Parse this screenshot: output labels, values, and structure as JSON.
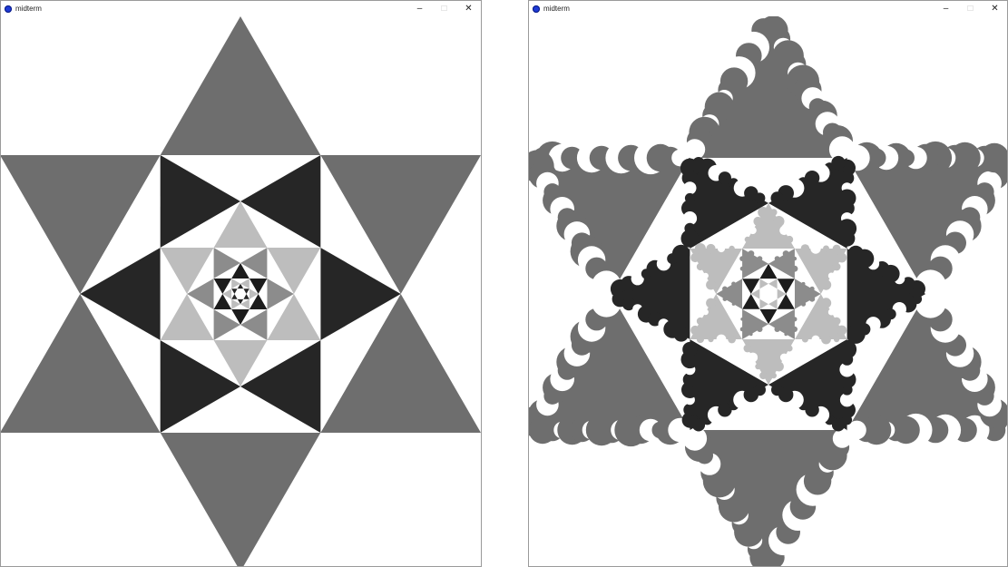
{
  "windows": [
    {
      "title": "midterm",
      "controls": {
        "minimize": "–",
        "maximize": "□",
        "close": "✕"
      },
      "canvas": {
        "variant": "sharp",
        "background": "#ffffff"
      }
    },
    {
      "title": "midterm",
      "controls": {
        "minimize": "–",
        "maximize": "□",
        "close": "✕"
      },
      "canvas": {
        "variant": "scalloped",
        "background": "#ffffff"
      }
    }
  ],
  "palette": {
    "outer_points": "#6e6e6e",
    "ring2": "#262626",
    "ring3": "#bdbdbd",
    "ring4": "#8c8c8c",
    "center": "#1c1c1c",
    "background": "#ffffff",
    "app_icon": "#1f3bd6"
  }
}
